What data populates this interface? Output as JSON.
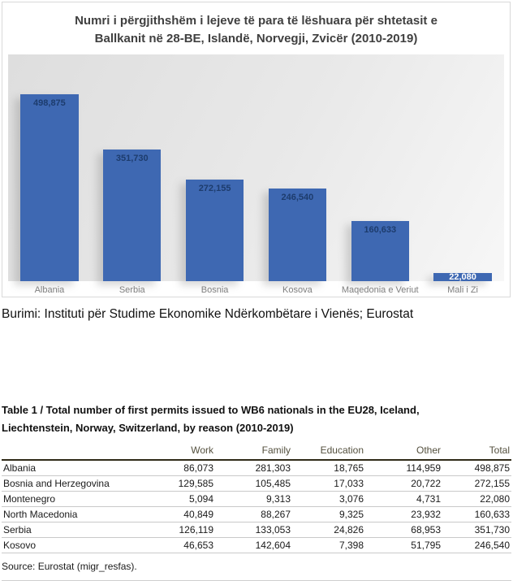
{
  "burimi_caption": "Burimi: Instituti për Studime Ekonomike Ndërkombëtare i Vienës; Eurostat",
  "chart_data": [
    {
      "type": "bar",
      "title": "Numri i përgjithshëm i lejeve të para të lëshuara për shtetasit e Ballkanit në 28-BE, Islandë, Norvegji, Zvicër (2010-2019)",
      "title_lines": [
        "Numri i përgjithshëm i lejeve të para të lëshuara për shtetasit e",
        "Ballkanit në 28-BE, Islandë, Norvegji, Zvicër  (2010-2019)"
      ],
      "categories": [
        "Albania",
        "Serbia",
        "Bosnia",
        "Kosova",
        "Maqedonia e Veriut",
        "Mali i Zi"
      ],
      "values": [
        498875,
        351730,
        272155,
        246540,
        160633,
        22080
      ],
      "value_labels": [
        "498,875",
        "351,730",
        "272,155",
        "246,540",
        "160,633",
        "22,080"
      ],
      "xlabel": "",
      "ylabel": "",
      "ylim": [
        0,
        520000
      ],
      "grid": false,
      "legend": "none",
      "bar_color": "#3e68b2",
      "value_label_color": "#1d3c6d",
      "small_bar_value_label_color": "#ffffff",
      "category_label_color": "#7f7f7f",
      "title_color": "#404040"
    },
    {
      "type": "table",
      "title": "Table 1 / Total number of first permits issued to WB6 nationals in the EU28, Iceland, Liechtenstein, Norway, Switzerland, by reason (2010-2019)",
      "title_lines": [
        "Table 1 / Total number of first permits issued to WB6 nationals in the EU28, Iceland,",
        "Liechtenstein, Norway, Switzerland, by reason (2010-2019)"
      ],
      "columns": [
        "",
        "Work",
        "Family",
        "Education",
        "Other",
        "Total"
      ],
      "rows": [
        [
          "Albania",
          "86,073",
          "281,303",
          "18,765",
          "114,959",
          "498,875"
        ],
        [
          "Bosnia and Herzegovina",
          "129,585",
          "105,485",
          "17,033",
          "20,722",
          "272,155"
        ],
        [
          "Montenegro",
          "5,094",
          "9,313",
          "3,076",
          "4,731",
          "22,080"
        ],
        [
          "North Macedonia",
          "40,849",
          "88,267",
          "9,325",
          "23,932",
          "160,633"
        ],
        [
          "Serbia",
          "126,119",
          "133,053",
          "24,826",
          "68,953",
          "351,730"
        ],
        [
          "Kosovo",
          "46,653",
          "142,604",
          "7,398",
          "51,795",
          "246,540"
        ]
      ],
      "source": "Source: Eurostat (migr_resfas)."
    }
  ]
}
